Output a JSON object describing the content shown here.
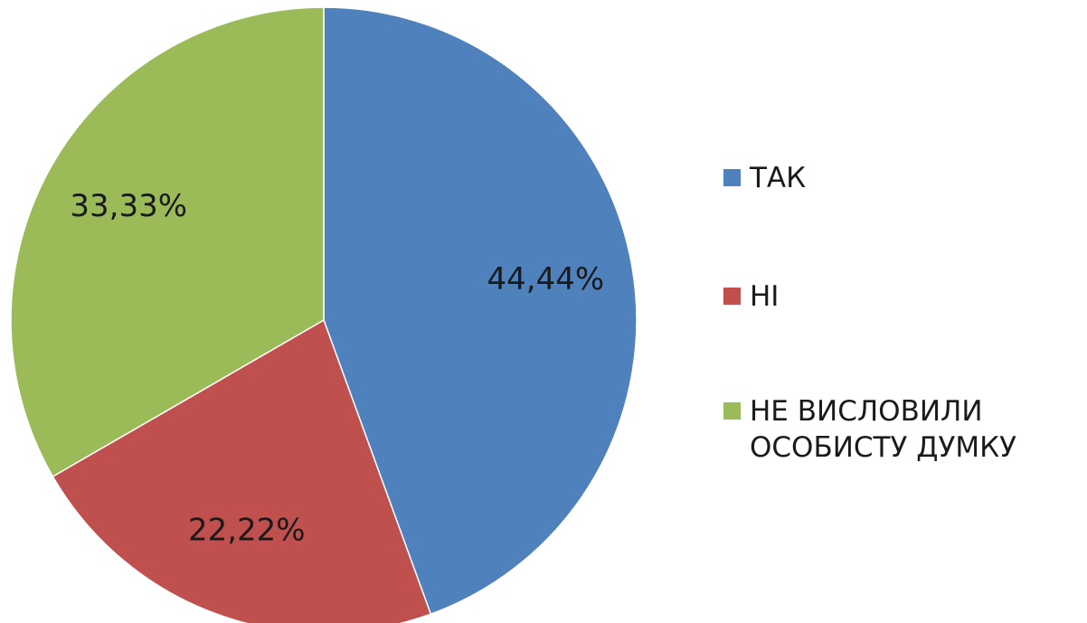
{
  "chart_data": {
    "type": "pie",
    "categories": [
      "ТАК",
      "НІ",
      "НЕ ВИСЛОВИЛИ ОСОБИСТУ ДУМКУ"
    ],
    "values": [
      44.44,
      22.22,
      33.33
    ],
    "value_labels": [
      "44,44%",
      "22,22%",
      "33,33%"
    ],
    "colors": [
      "#4f81bd",
      "#c0504d",
      "#9bbb59"
    ],
    "legend": "right"
  }
}
